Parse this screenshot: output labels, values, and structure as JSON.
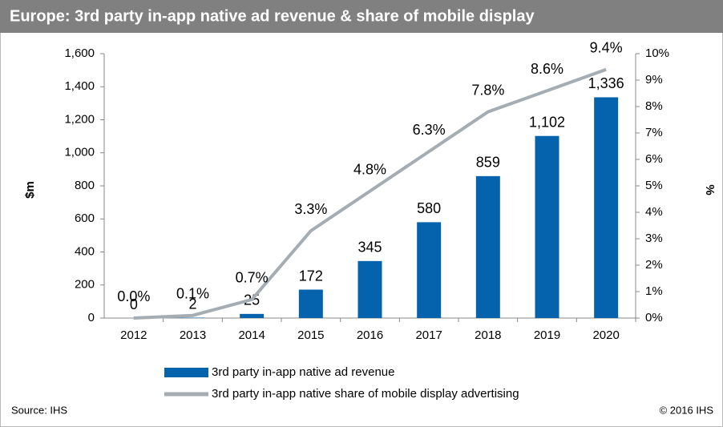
{
  "chart_data": {
    "type": "bar",
    "title": "Europe: 3rd party in-app native ad revenue & share of mobile display",
    "ylabel": "$m",
    "y2label": "%",
    "source": "Source: IHS",
    "copyright": "© 2016 IHS",
    "categories": [
      "2012",
      "2013",
      "2014",
      "2015",
      "2016",
      "2017",
      "2018",
      "2019",
      "2020"
    ],
    "series": [
      {
        "name": "3rd party in-app native ad revenue",
        "type": "bar",
        "color": "#0563ae",
        "values": [
          0,
          2,
          25,
          172,
          345,
          580,
          859,
          1102,
          1336
        ],
        "value_labels": [
          "0",
          "2",
          "25",
          "172",
          "345",
          "580",
          "859",
          "1,102",
          "1,336"
        ]
      },
      {
        "name": "3rd party in-app native share of mobile display advertising",
        "type": "line",
        "axis": "y2",
        "color": "#a5adb3",
        "values": [
          0.0,
          0.1,
          0.7,
          3.3,
          4.8,
          6.3,
          7.8,
          8.6,
          9.4
        ],
        "value_labels": [
          "0.0%",
          "0.1%",
          "0.7%",
          "3.3%",
          "4.8%",
          "6.3%",
          "7.8%",
          "8.6%",
          "9.4%"
        ]
      }
    ],
    "ylim": [
      0,
      1600
    ],
    "yticks": [
      0,
      200,
      400,
      600,
      800,
      {
        "value": 1000,
        "label": "1,000"
      },
      {
        "value": 1200,
        "label": "1,200"
      },
      {
        "value": 1400,
        "label": "1,400"
      },
      {
        "value": 1600,
        "label": "1,600"
      }
    ],
    "y2lim": [
      0,
      10
    ],
    "y2ticks": [
      {
        "value": 0,
        "label": "0%"
      },
      {
        "value": 1,
        "label": "1%"
      },
      {
        "value": 2,
        "label": "2%"
      },
      {
        "value": 3,
        "label": "3%"
      },
      {
        "value": 4,
        "label": "4%"
      },
      {
        "value": 5,
        "label": "5%"
      },
      {
        "value": 6,
        "label": "6%"
      },
      {
        "value": 7,
        "label": "7%"
      },
      {
        "value": 8,
        "label": "8%"
      },
      {
        "value": 9,
        "label": "9%"
      },
      {
        "value": 10,
        "label": "10%"
      }
    ],
    "grid": false
  }
}
